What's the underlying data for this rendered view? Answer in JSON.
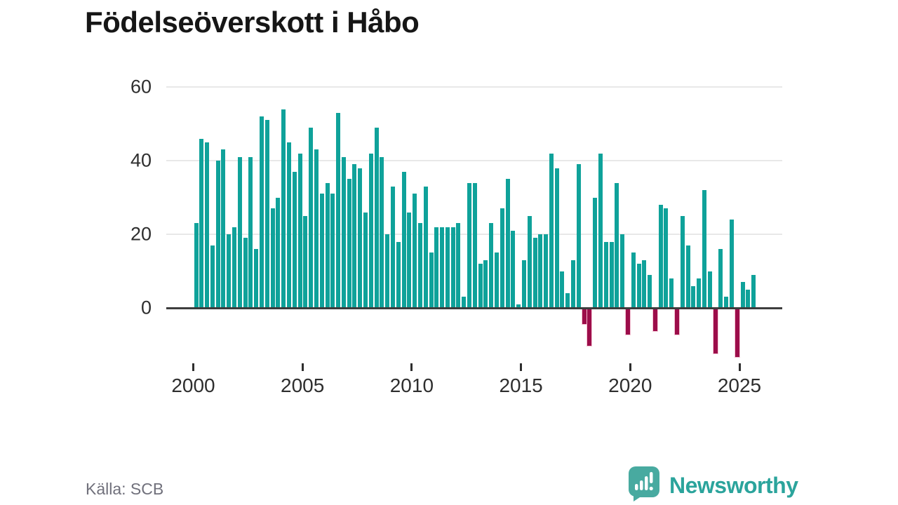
{
  "title": "Födelseöverskott i Håbo",
  "source": "Källa: SCB",
  "logo": {
    "text": "Newsworthy",
    "icon": "newsworthy-speech-bubble-bar-chart-icon"
  },
  "colors": {
    "positive_bar": "#0fa29a",
    "negative_bar": "#9c0d4a",
    "axis_line": "#3d3d3d",
    "gridline": "#e8e8e8",
    "tick_text": "#2e2e2e",
    "title_text": "#161616",
    "source_text": "#70707b",
    "logo_teal": "#2ba49c"
  },
  "chart_data": {
    "type": "bar",
    "title": "Födelseöverskott i Håbo",
    "frequency": "quarterly",
    "x_start": "2000-Q1",
    "x_end": "2025-Q3",
    "xlabel": "",
    "ylabel": "",
    "ylim": [
      -15,
      62
    ],
    "grid": "horizontal",
    "y_ticks": [
      0,
      20,
      40,
      60
    ],
    "x_tick_labels": [
      "2000",
      "2005",
      "2010",
      "2015",
      "2020",
      "2025"
    ],
    "values": [
      23,
      46,
      45,
      17,
      40,
      43,
      20,
      22,
      41,
      19,
      41,
      16,
      52,
      51,
      27,
      30,
      54,
      45,
      37,
      42,
      25,
      49,
      43,
      31,
      34,
      31,
      53,
      41,
      35,
      39,
      38,
      26,
      42,
      49,
      41,
      20,
      33,
      18,
      37,
      26,
      31,
      23,
      33,
      15,
      22,
      22,
      22,
      22,
      23,
      3,
      34,
      34,
      12,
      13,
      23,
      15,
      27,
      35,
      21,
      1,
      13,
      25,
      19,
      20,
      20,
      42,
      38,
      10,
      4,
      13,
      39,
      -4,
      -10,
      30,
      42,
      18,
      18,
      34,
      20,
      -7,
      15,
      12,
      13,
      9,
      -6,
      28,
      27,
      8,
      -7,
      25,
      17,
      6,
      8,
      32,
      10,
      -12,
      16,
      3,
      24,
      -13,
      7,
      5,
      9
    ]
  }
}
